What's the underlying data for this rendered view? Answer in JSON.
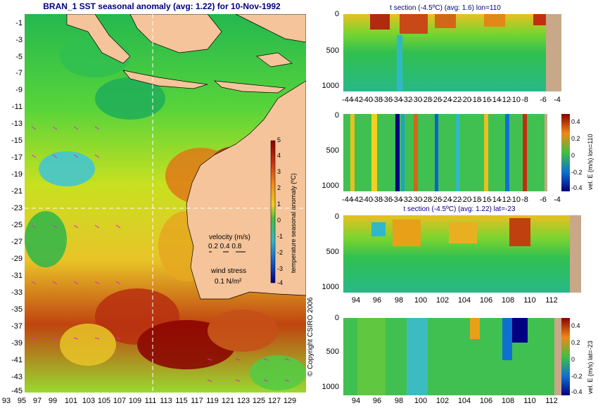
{
  "main_title": "BRAN_1 SST seasonal anomaly (avg: 1.22) for 10-Nov-1992",
  "map": {
    "y_ticks": [
      "-1",
      "-3",
      "-5",
      "-7",
      "-9",
      "-11",
      "-13",
      "-15",
      "-17",
      "-19",
      "-21",
      "-23",
      "-25",
      "-27",
      "-29",
      "-31",
      "-33",
      "-35",
      "-37",
      "-39",
      "-41",
      "-43",
      "-45"
    ],
    "x_ticks": [
      "93",
      "95",
      "97",
      "99",
      "101",
      "103",
      "105",
      "107",
      "109",
      "111",
      "113",
      "115",
      "117",
      "119",
      "121",
      "123",
      "125",
      "127",
      "129"
    ],
    "colorbar": {
      "ticks": [
        "5",
        "4",
        "3",
        "2",
        "1",
        "0",
        "-1",
        "-2",
        "-3",
        "-4"
      ],
      "title": "temperature seasonal anomaly (ºC)"
    },
    "legend": {
      "velocity_label": "velocity (m/s)",
      "velocity_values": "0.2 0.4 0.8",
      "wind_label": "wind stress",
      "wind_value": "0.1 N/m²"
    },
    "crosshair": {
      "lon": 110,
      "lat": -23
    }
  },
  "copyright": "© Copyright CSIRO 2006",
  "sections": [
    {
      "title": "t section (-4.5ºC) (avg: 1.6) lon=110",
      "y_ticks": [
        "0",
        "500",
        "1000"
      ],
      "x_ticks": [
        "-44",
        "-42",
        "-40",
        "-38",
        "-36",
        "-34",
        "-32",
        "-30",
        "-28",
        "-26",
        "-24",
        "-22",
        "-20",
        "-18",
        "-16",
        "-14",
        "-12",
        "-10",
        "-8",
        "-6",
        "-4"
      ],
      "has_colorbar": false
    },
    {
      "title": "",
      "y_ticks": [
        "0",
        "500",
        "1000"
      ],
      "x_ticks": [
        "-44",
        "-42",
        "-40",
        "-38",
        "-36",
        "-34",
        "-32",
        "-30",
        "-28",
        "-26",
        "-24",
        "-22",
        "-20",
        "-18",
        "-16",
        "-14",
        "-12",
        "-10",
        "-8",
        "-6",
        "-4"
      ],
      "has_colorbar": true,
      "colorbar_ticks": [
        "0.4",
        "0.2",
        "0",
        "-0.2",
        "-0.4"
      ],
      "colorbar_title": "vel. E (m/s) lon=110"
    },
    {
      "title": "t section (-4.5ºC) (avg: 1.22) lat=-23",
      "y_ticks": [
        "0",
        "500",
        "1000"
      ],
      "x_ticks": [
        "94",
        "96",
        "98",
        "100",
        "102",
        "104",
        "106",
        "108",
        "110",
        "112"
      ],
      "has_colorbar": false
    },
    {
      "title": "",
      "y_ticks": [
        "0",
        "500",
        "1000"
      ],
      "x_ticks": [
        "94",
        "96",
        "98",
        "100",
        "102",
        "104",
        "106",
        "108",
        "110",
        "112"
      ],
      "has_colorbar": true,
      "colorbar_ticks": [
        "0.4",
        "0.2",
        "0",
        "-0.2",
        "-0.4"
      ],
      "colorbar_title": "vel. E (m/s) lat=-23"
    }
  ],
  "colors": {
    "land": "#f5c49a",
    "land_dark": "#c8a888",
    "warm": "#b83010",
    "hot": "#8a0000",
    "mid": "#f0d020",
    "cool": "#30c040",
    "cold": "#1070d0",
    "title": "#000080"
  }
}
